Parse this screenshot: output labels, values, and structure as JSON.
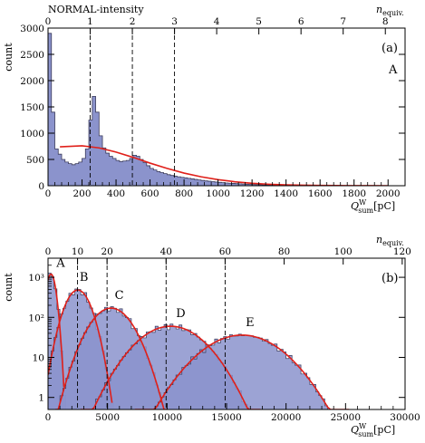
{
  "colors": {
    "hist_fill": "#8b93cc",
    "hist_line": "#3a3a5a",
    "fit_line": "#e0201a",
    "axis": "#000000",
    "dashed": "#000000"
  },
  "chart_data": [
    {
      "type": "bar",
      "panel_label": "(a)",
      "dataset_label": "A",
      "ylabel": "count",
      "xlabel_main": "Q",
      "xlabel_sup": "W",
      "xlabel_sub": "sum",
      "xlabel_unit": "[pC]",
      "top_axis_label": "NORMAL-intensity",
      "top_axis_label_sub": "",
      "right_top_label_main": "n",
      "right_top_label_sub": "equiv.",
      "xlim": [
        0,
        2100
      ],
      "ylim": [
        0,
        3000
      ],
      "yscale": "linear",
      "x_ticks": [
        0,
        200,
        400,
        600,
        800,
        1000,
        1200,
        1400,
        1600,
        1800,
        2000
      ],
      "y_ticks": [
        0,
        500,
        1000,
        1500,
        2000,
        2500,
        3000
      ],
      "top_ticks": [
        0,
        1,
        2,
        3,
        4,
        5,
        6,
        7,
        8
      ],
      "top_tick_scale_pC_per_unit": 248,
      "dashed_lines_x": [
        248,
        496,
        744
      ],
      "histogram": {
        "bin_width": 20,
        "x_start": 0,
        "counts": [
          2900,
          1400,
          700,
          600,
          500,
          450,
          420,
          400,
          420,
          450,
          520,
          700,
          1250,
          1700,
          1400,
          950,
          720,
          620,
          560,
          520,
          480,
          460,
          470,
          480,
          520,
          580,
          560,
          500,
          440,
          380,
          330,
          300,
          270,
          250,
          230,
          210,
          195,
          180,
          170,
          160,
          150,
          140,
          130,
          120,
          110,
          100,
          92,
          85,
          78,
          70,
          64,
          58,
          52,
          48,
          44,
          40,
          36,
          32,
          29,
          26,
          23,
          20,
          18,
          16,
          14,
          12,
          11,
          10,
          9,
          8,
          7,
          6,
          5,
          4,
          4,
          3,
          3,
          2,
          2,
          2,
          1,
          1,
          1,
          1,
          0,
          0,
          0,
          0,
          0,
          0,
          0,
          0,
          0,
          0,
          0,
          0,
          0,
          0,
          0,
          0
        ]
      },
      "fit_curves": [
        {
          "name": "",
          "x": [
            70,
            200,
            300,
            400,
            500,
            600,
            700,
            800,
            900,
            1000,
            1100,
            1200,
            1300,
            1400,
            1500,
            1600,
            1700,
            1800,
            1900,
            2000
          ],
          "y": [
            740,
            760,
            720,
            640,
            540,
            430,
            330,
            240,
            170,
            115,
            75,
            47,
            28,
            16,
            9,
            5,
            3,
            1,
            1,
            0
          ]
        }
      ]
    },
    {
      "type": "bar",
      "panel_label": "(b)",
      "ylabel": "count",
      "xlabel_main": "Q",
      "xlabel_sup": "W",
      "xlabel_sub": "sum",
      "xlabel_unit": "[pC]",
      "right_top_label_main": "n",
      "right_top_label_sub": "equiv.",
      "xlim": [
        0,
        30000
      ],
      "ylim": [
        0.5,
        3000
      ],
      "yscale": "log",
      "x_ticks": [
        0,
        5000,
        10000,
        15000,
        20000,
        25000,
        30000
      ],
      "y_ticks": [
        1,
        10,
        100,
        1000
      ],
      "y_tick_labels": [
        "1",
        "10",
        "10²",
        "10³"
      ],
      "top_ticks": [
        0,
        10,
        20,
        40,
        60,
        80,
        100,
        120
      ],
      "top_tick_scale_pC_per_unit": 248,
      "dashed_lines_x": [
        2480,
        4960,
        9920,
        14880
      ],
      "peaks": [
        {
          "label": "A",
          "center": 250,
          "sigma": 300,
          "amplitude": 1200
        },
        {
          "label": "B",
          "center": 2500,
          "sigma": 800,
          "amplitude": 480
        },
        {
          "label": "C",
          "center": 5300,
          "sigma": 1300,
          "amplitude": 170
        },
        {
          "label": "D",
          "center": 10300,
          "sigma": 2100,
          "amplitude": 60
        },
        {
          "label": "E",
          "center": 16300,
          "sigma": 2500,
          "amplitude": 36
        }
      ]
    }
  ]
}
